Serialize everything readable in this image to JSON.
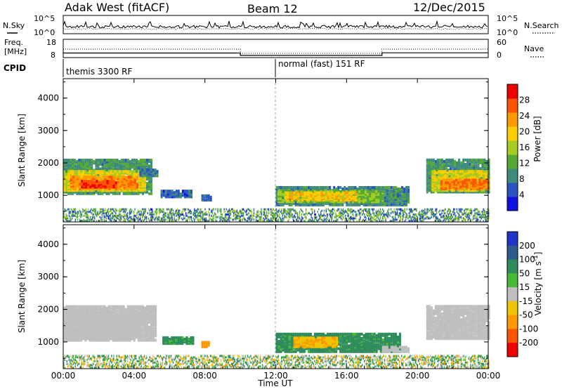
{
  "header": {
    "station": "Adak West (fitACF)",
    "beam": "Beam 12",
    "date": "12/Dec/2015"
  },
  "noise_panel": {
    "left_label": "N.Sky",
    "right_label": "N.Search",
    "tick_top": "10^5",
    "tick_bottom": "10^0"
  },
  "freq_panel": {
    "left_label_1": "Freq.",
    "left_label_2": "[MHz]",
    "right_label": "Nave",
    "left_ticks": [
      "18",
      "8"
    ],
    "right_ticks": [
      "60",
      "0"
    ]
  },
  "cpid_panel": {
    "label": "CPID",
    "modes": [
      {
        "start_hour": 0,
        "text": "themis 3300 RF"
      },
      {
        "start_hour": 12,
        "text": "normal (fast) 151 RF"
      }
    ]
  },
  "freq_series": {
    "segments": [
      {
        "from": 0,
        "to": 10,
        "mhz": 10.5
      },
      {
        "from": 10,
        "to": 18,
        "mhz": 9.2
      },
      {
        "from": 18,
        "to": 24,
        "mhz": 10.6
      }
    ]
  },
  "chart_data": [
    {
      "type": "heatmap",
      "name": "power",
      "xlabel": "Time UT",
      "ylabel": "Slant Range [km]",
      "x_ticks": [
        "00:00",
        "04:00",
        "08:00",
        "12:00",
        "16:00",
        "20:00",
        "00:00"
      ],
      "xlim": [
        0,
        24
      ],
      "ylim": [
        180,
        4600
      ],
      "y_ticks": [
        1000,
        2000,
        3000,
        4000
      ],
      "colorbar": {
        "label": "Power [dB]",
        "ticks": [
          4,
          8,
          12,
          16,
          20,
          24,
          28
        ],
        "range": [
          0,
          32
        ],
        "colors": [
          "#1010e0",
          "#2a55c0",
          "#3f8a7e",
          "#55aa33",
          "#a4cc22",
          "#ffcc00",
          "#ff9900",
          "#ff5500",
          "#ee0000"
        ]
      },
      "regions": [
        {
          "t0": 0.0,
          "t1": 5.0,
          "r0": 1050,
          "r1": 2100,
          "level": 10
        },
        {
          "t0": 0.0,
          "t1": 4.6,
          "r0": 1150,
          "r1": 1750,
          "level": 18
        },
        {
          "t0": 0.4,
          "t1": 4.2,
          "r0": 1200,
          "r1": 1600,
          "level": 24
        },
        {
          "t0": 1.0,
          "t1": 3.0,
          "r0": 1250,
          "r1": 1450,
          "level": 28
        },
        {
          "t0": 4.3,
          "t1": 5.3,
          "r0": 1600,
          "r1": 1800,
          "level": 8
        },
        {
          "t0": 5.5,
          "t1": 7.2,
          "r0": 950,
          "r1": 1150,
          "level": 6
        },
        {
          "t0": 7.8,
          "t1": 8.3,
          "r0": 850,
          "r1": 1000,
          "level": 6
        },
        {
          "t0": 12.0,
          "t1": 19.5,
          "r0": 700,
          "r1": 1250,
          "level": 9
        },
        {
          "t0": 12.1,
          "t1": 18.0,
          "r0": 800,
          "r1": 1150,
          "level": 14
        },
        {
          "t0": 12.5,
          "t1": 16.5,
          "r0": 850,
          "r1": 1100,
          "level": 20
        },
        {
          "t0": 20.5,
          "t1": 24.0,
          "r0": 1100,
          "r1": 2100,
          "level": 10
        },
        {
          "t0": 20.8,
          "t1": 24.0,
          "r0": 1150,
          "r1": 1750,
          "level": 18
        },
        {
          "t0": 21.3,
          "t1": 24.0,
          "r0": 1200,
          "r1": 1500,
          "level": 25
        }
      ]
    },
    {
      "type": "heatmap",
      "name": "velocity",
      "xlabel": "Time UT",
      "ylabel": "Slant Range [km]",
      "x_ticks": [
        "00:00",
        "04:00",
        "08:00",
        "12:00",
        "16:00",
        "20:00",
        "00:00"
      ],
      "xlim": [
        0,
        24
      ],
      "ylim": [
        180,
        4600
      ],
      "y_ticks": [
        1000,
        2000,
        3000,
        4000
      ],
      "colorbar": {
        "label": "Velocity [m s^-1]",
        "ticks": [
          "200",
          "100",
          "50",
          "15",
          "-15",
          "-50",
          "-100",
          "-200"
        ],
        "colors": [
          "#1d35c8",
          "#2f5a8c",
          "#2d8c5a",
          "#44bb33",
          "#bfbfbf",
          "#f0c400",
          "#ff9900",
          "#ff5500",
          "#ee0000"
        ]
      },
      "regions": [
        {
          "t0": 0.0,
          "t1": 5.2,
          "r0": 1050,
          "r1": 2100,
          "velocity": 0
        },
        {
          "t0": 0.0,
          "t1": 4.2,
          "r0": 1100,
          "r1": 1900,
          "velocity": 5
        },
        {
          "t0": 4.4,
          "t1": 5.2,
          "r0": 1600,
          "r1": 1800,
          "velocity": 0
        },
        {
          "t0": 5.6,
          "t1": 7.4,
          "r0": 950,
          "r1": 1150,
          "velocity": 40
        },
        {
          "t0": 7.8,
          "t1": 8.2,
          "r0": 850,
          "r1": 1000,
          "velocity": -50
        },
        {
          "t0": 12.0,
          "t1": 19.0,
          "r0": 700,
          "r1": 1250,
          "velocity": 40
        },
        {
          "t0": 13.0,
          "t1": 15.5,
          "r0": 850,
          "r1": 1150,
          "velocity": -30
        },
        {
          "t0": 18.0,
          "t1": 19.5,
          "r0": 700,
          "r1": 850,
          "velocity": 0
        },
        {
          "t0": 20.5,
          "t1": 24.0,
          "r0": 1100,
          "r1": 2100,
          "velocity": 0
        }
      ]
    }
  ]
}
